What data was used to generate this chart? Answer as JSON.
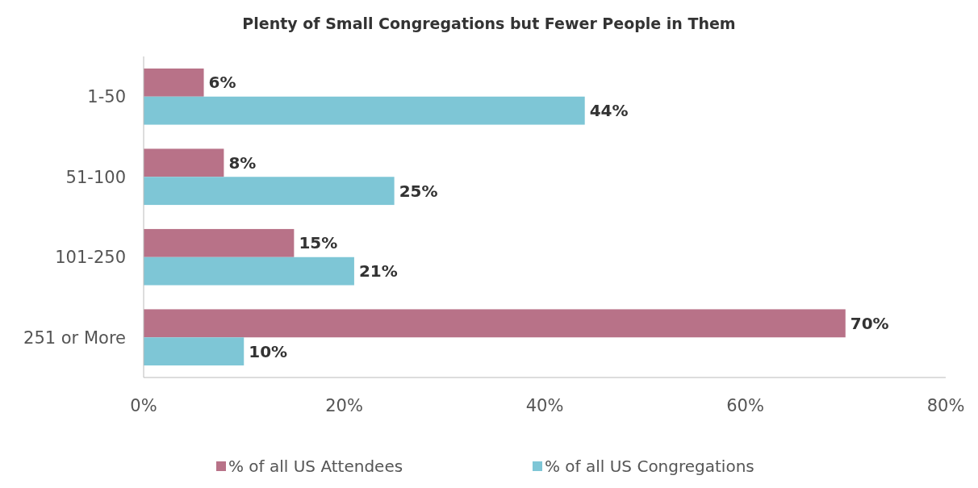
{
  "chart_data": {
    "type": "bar",
    "orientation": "horizontal",
    "title": "Plenty of Small Congregations but Fewer People in Them",
    "categories": [
      "1-50",
      "51-100",
      "101-250",
      "251 or More"
    ],
    "series": [
      {
        "name": "% of all US Attendees",
        "color": "#b87288",
        "values": [
          6,
          8,
          15,
          70
        ],
        "value_labels": [
          "6%",
          "8%",
          "15%",
          "70%"
        ]
      },
      {
        "name": "% of all US Congregations",
        "color": "#7ec6d6",
        "values": [
          44,
          25,
          21,
          10
        ],
        "value_labels": [
          "44%",
          "25%",
          "21%",
          "10%"
        ]
      }
    ],
    "xlim": [
      0,
      80
    ],
    "xticks": [
      {
        "value": 0,
        "label": "0%"
      },
      {
        "value": 20,
        "label": "20%"
      },
      {
        "value": 40,
        "label": "40%"
      },
      {
        "value": 60,
        "label": "60%"
      },
      {
        "value": 80,
        "label": "80%"
      }
    ],
    "grid": false,
    "legend": "bottom"
  }
}
